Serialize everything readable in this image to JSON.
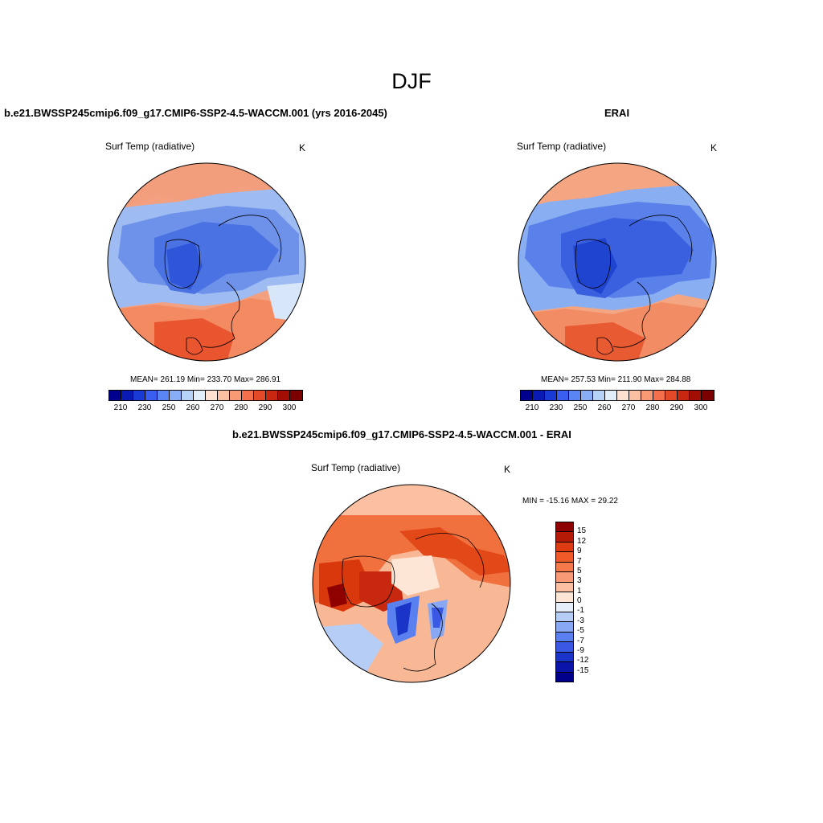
{
  "season": "DJF",
  "panels": {
    "model": {
      "title": "b.e21.BWSSP245cmip6.f09_g17.CMIP6-SSP2-4.5-WACCM.001 (yrs 2016-2045)",
      "variable": "Surf Temp (radiative)",
      "units": "K",
      "stats": "MEAN= 261.19  Min= 233.70  Max= 286.91"
    },
    "obs": {
      "title": "ERAI",
      "variable": "Surf Temp (radiative)",
      "units": "K",
      "stats": "MEAN= 257.53  Min= 211.90  Max= 284.88"
    },
    "diff": {
      "title": "b.e21.BWSSP245cmip6.f09_g17.CMIP6-SSP2-4.5-WACCM.001 - ERAI",
      "variable": "Surf Temp (radiative)",
      "units": "K",
      "minmax": "MIN = -15.16 MAX =  29.22"
    }
  },
  "colorbar_abs": {
    "ticks": [
      "210",
      "230",
      "250",
      "260",
      "270",
      "280",
      "290",
      "300"
    ],
    "colors": [
      "#00008f",
      "#0a1ab4",
      "#1a3ad6",
      "#3a5ef0",
      "#5a86f4",
      "#88aef6",
      "#b6d2f6",
      "#e2eefa",
      "#fde2d2",
      "#fbc0a2",
      "#f89a74",
      "#f4704c",
      "#e44a28",
      "#c82810",
      "#a30e04",
      "#7d0000"
    ]
  },
  "colorbar_diff": {
    "labels": [
      "15",
      "12",
      "9",
      "7",
      "5",
      "3",
      "1",
      "0",
      "-1",
      "-3",
      "-5",
      "-7",
      "-9",
      "-12",
      "-15"
    ],
    "colors": [
      "#8f0000",
      "#b41a06",
      "#dc3a10",
      "#f05a28",
      "#f4784a",
      "#f89a76",
      "#fbc0a2",
      "#fde6d6",
      "#e6eefa",
      "#b6cdf6",
      "#88a8f4",
      "#5a80f0",
      "#3a58e4",
      "#1a34c8",
      "#0a14a8",
      "#00008a"
    ]
  }
}
